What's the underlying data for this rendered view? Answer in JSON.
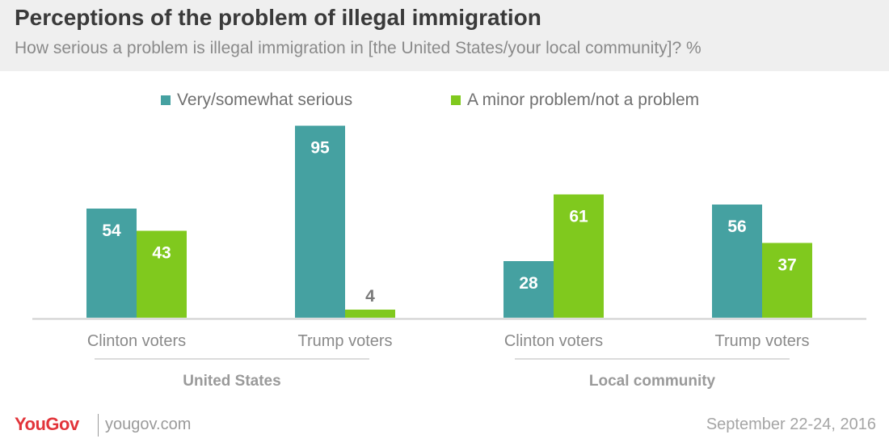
{
  "header": {
    "title": "Perceptions of the problem of illegal immigration",
    "subtitle": "How serious a problem is illegal immigration in [the United States/your local community]? %"
  },
  "footer": {
    "brand": "YouGov",
    "url": "yougov.com",
    "date": "September 22-24, 2016"
  },
  "colors": {
    "series_serious": "#45a1a1",
    "series_minor": "#80c91e",
    "baseline": "#cfcfcf",
    "label_inside": "#ffffff",
    "label_outside": "#7a7a7a"
  },
  "chart_data": {
    "type": "bar",
    "categories": [
      "Clinton voters",
      "Trump voters",
      "Clinton voters",
      "Trump voters"
    ],
    "groups": [
      {
        "label": "United States",
        "categories": [
          "Clinton voters",
          "Trump voters"
        ]
      },
      {
        "label": "Local community",
        "categories": [
          "Clinton voters",
          "Trump voters"
        ]
      }
    ],
    "series": [
      {
        "name": "Very/somewhat serious",
        "values": [
          54,
          95,
          28,
          56
        ]
      },
      {
        "name": "A minor problem/not a problem",
        "values": [
          43,
          4,
          61,
          37
        ]
      }
    ],
    "ylim": [
      0,
      100
    ],
    "legend": "top",
    "grid": false
  }
}
